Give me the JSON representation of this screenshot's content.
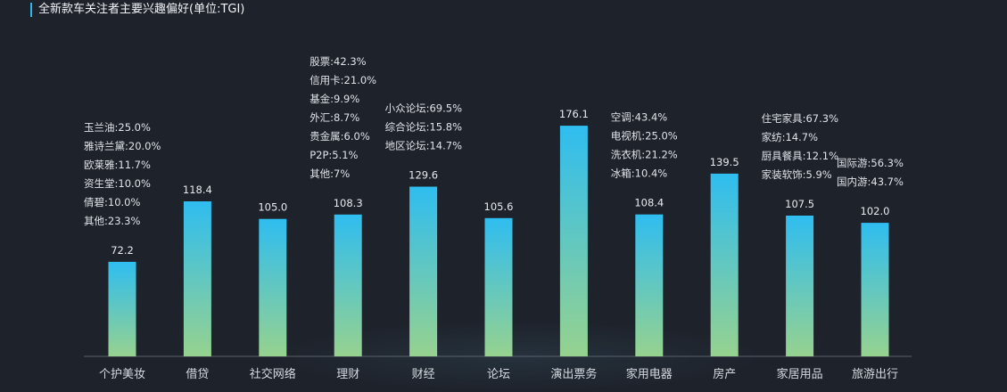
{
  "title": "全新款车关注者主要兴趣偏好(单位:TGI)",
  "colors": {
    "bar_top": "#2fbdf0",
    "bar_bottom": "#96d28f",
    "value_label": "#e8ebef",
    "annotation": "#dfe3e8",
    "category_label": "#d6dae0",
    "axis": "#5a616e",
    "accent": "#2fb8e8"
  },
  "chart_data": {
    "type": "bar",
    "title": "全新款车关注者主要兴趣偏好(单位:TGI)",
    "xlabel": "",
    "ylabel": "",
    "ylim": [
      0,
      200
    ],
    "grid": false,
    "legend": "none",
    "categories": [
      "个护美妆",
      "借贷",
      "社交网络",
      "理财",
      "财经",
      "论坛",
      "演出票务",
      "家用电器",
      "房产",
      "家居用品",
      "旅游出行"
    ],
    "values": [
      72.2,
      118.4,
      105.0,
      108.3,
      129.6,
      105.6,
      176.1,
      108.4,
      139.5,
      107.5,
      102.0
    ],
    "value_labels": [
      "72.2",
      "118.4",
      "105.0",
      "108.3",
      "129.6",
      "105.6",
      "176.1",
      "108.4",
      "139.5",
      "107.5",
      "102.0"
    ],
    "annotations": [
      [
        "玉兰油:25.0%",
        "雅诗兰黛:20.0%",
        "欧莱雅:11.7%",
        "资生堂:10.0%",
        "倩碧:10.0%",
        "其他:23.3%"
      ],
      [],
      [],
      [
        "股票:42.3%",
        "信用卡:21.0%",
        "基金:9.9%",
        "外汇:8.7%",
        "贵金属:6.0%",
        "P2P:5.1%",
        "其他:7%"
      ],
      [
        "小众论坛:69.5%",
        "综合论坛:15.8%",
        "地区论坛:14.7%"
      ],
      [],
      [],
      [
        "空调:43.4%",
        "电视机:25.0%",
        "洗衣机:21.2%",
        "冰箱:10.4%"
      ],
      [],
      [
        "住宅家具:67.3%",
        "家纺:14.7%",
        "厨具餐具:12.1%",
        "家装软饰:5.9%"
      ],
      [
        "国际游:56.3%",
        "国内游:43.7%"
      ]
    ]
  }
}
